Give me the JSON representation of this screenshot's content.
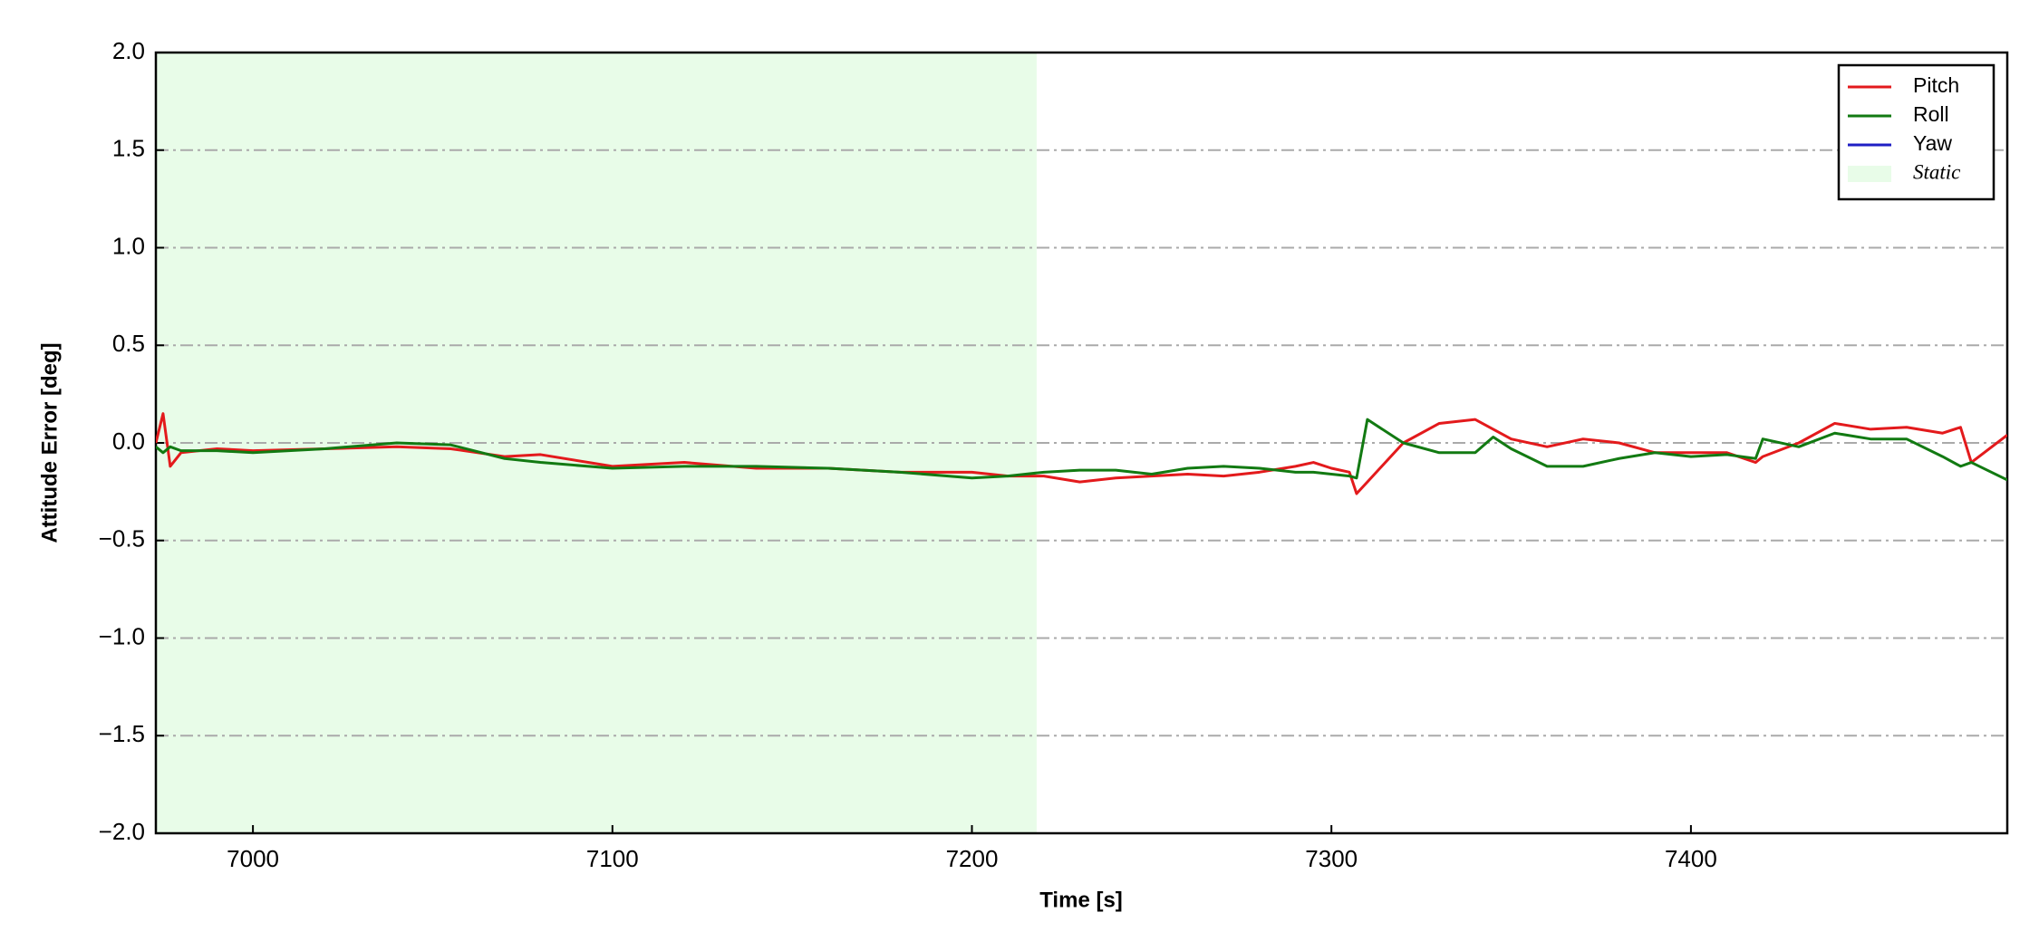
{
  "chart_data": {
    "type": "line",
    "xlabel": "Time [s]",
    "ylabel": "Attitude Error [deg]",
    "xlim": [
      6973,
      7488
    ],
    "xticks": [
      7000,
      7100,
      7200,
      7300,
      7400
    ],
    "ylim": [
      -2,
      2
    ],
    "yticks": [
      {
        "value": -2,
        "label": "−2.0"
      },
      {
        "value": -1.5,
        "label": "−1.5"
      },
      {
        "value": -1,
        "label": "−1.0"
      },
      {
        "value": -0.5,
        "label": "−0.5"
      },
      {
        "value": 0,
        "label": "0.0"
      },
      {
        "value": 0.5,
        "label": "0.5"
      },
      {
        "value": 1,
        "label": "1.0"
      },
      {
        "value": 1.5,
        "label": "1.5"
      },
      {
        "value": 2,
        "label": "2.0"
      }
    ],
    "grid": true,
    "legend": "upper right",
    "shaded_regions": [
      {
        "name": "Static",
        "x": [
          6973,
          7218
        ],
        "color": "#e8fce8"
      }
    ],
    "x": [
      6973,
      6975,
      6977,
      6980,
      6990,
      7000,
      7020,
      7040,
      7055,
      7070,
      7080,
      7100,
      7120,
      7140,
      7160,
      7180,
      7200,
      7210,
      7220,
      7230,
      7240,
      7250,
      7260,
      7270,
      7280,
      7290,
      7295,
      7300,
      7305,
      7307,
      7310,
      7320,
      7330,
      7340,
      7345,
      7350,
      7360,
      7370,
      7380,
      7390,
      7400,
      7410,
      7418,
      7420,
      7430,
      7440,
      7450,
      7460,
      7470,
      7475,
      7478,
      7488
    ],
    "series": [
      {
        "name": "Pitch",
        "color": "#e31a1c",
        "values": [
          0.0,
          0.15,
          -0.12,
          -0.05,
          -0.03,
          -0.04,
          -0.03,
          -0.02,
          -0.03,
          -0.07,
          -0.06,
          -0.12,
          -0.1,
          -0.13,
          -0.13,
          -0.15,
          -0.15,
          -0.17,
          -0.17,
          -0.2,
          -0.18,
          -0.17,
          -0.16,
          -0.17,
          -0.15,
          -0.12,
          -0.1,
          -0.13,
          -0.15,
          -0.26,
          -0.2,
          0.0,
          0.1,
          0.12,
          0.07,
          0.02,
          -0.02,
          0.02,
          0.0,
          -0.05,
          -0.05,
          -0.05,
          -0.1,
          -0.07,
          0.0,
          0.1,
          0.07,
          0.08,
          0.05,
          0.08,
          -0.1,
          0.04
        ]
      },
      {
        "name": "Roll",
        "color": "#127a12",
        "values": [
          -0.02,
          -0.05,
          -0.02,
          -0.04,
          -0.04,
          -0.05,
          -0.03,
          0.0,
          -0.01,
          -0.08,
          -0.1,
          -0.13,
          -0.12,
          -0.12,
          -0.13,
          -0.15,
          -0.18,
          -0.17,
          -0.15,
          -0.14,
          -0.14,
          -0.16,
          -0.13,
          -0.12,
          -0.13,
          -0.15,
          -0.15,
          -0.16,
          -0.17,
          -0.18,
          0.12,
          0.0,
          -0.05,
          -0.05,
          0.03,
          -0.03,
          -0.12,
          -0.12,
          -0.08,
          -0.05,
          -0.07,
          -0.06,
          -0.08,
          0.02,
          -0.02,
          0.05,
          0.02,
          0.02,
          -0.07,
          -0.12,
          -0.1,
          -0.19
        ]
      },
      {
        "name": "Yaw",
        "color": "#1f1fc4",
        "values": [
          null,
          null,
          null,
          null,
          null,
          null,
          null,
          null,
          null,
          null,
          null,
          null,
          null,
          null,
          null,
          null,
          null,
          null,
          null,
          null,
          null,
          null,
          null,
          null,
          null,
          null,
          null,
          null,
          null,
          null,
          null,
          null,
          null,
          null,
          null,
          null,
          null,
          null,
          null,
          null,
          null,
          null,
          null,
          null,
          null,
          null,
          null,
          null,
          null,
          null,
          null,
          null
        ]
      }
    ]
  }
}
